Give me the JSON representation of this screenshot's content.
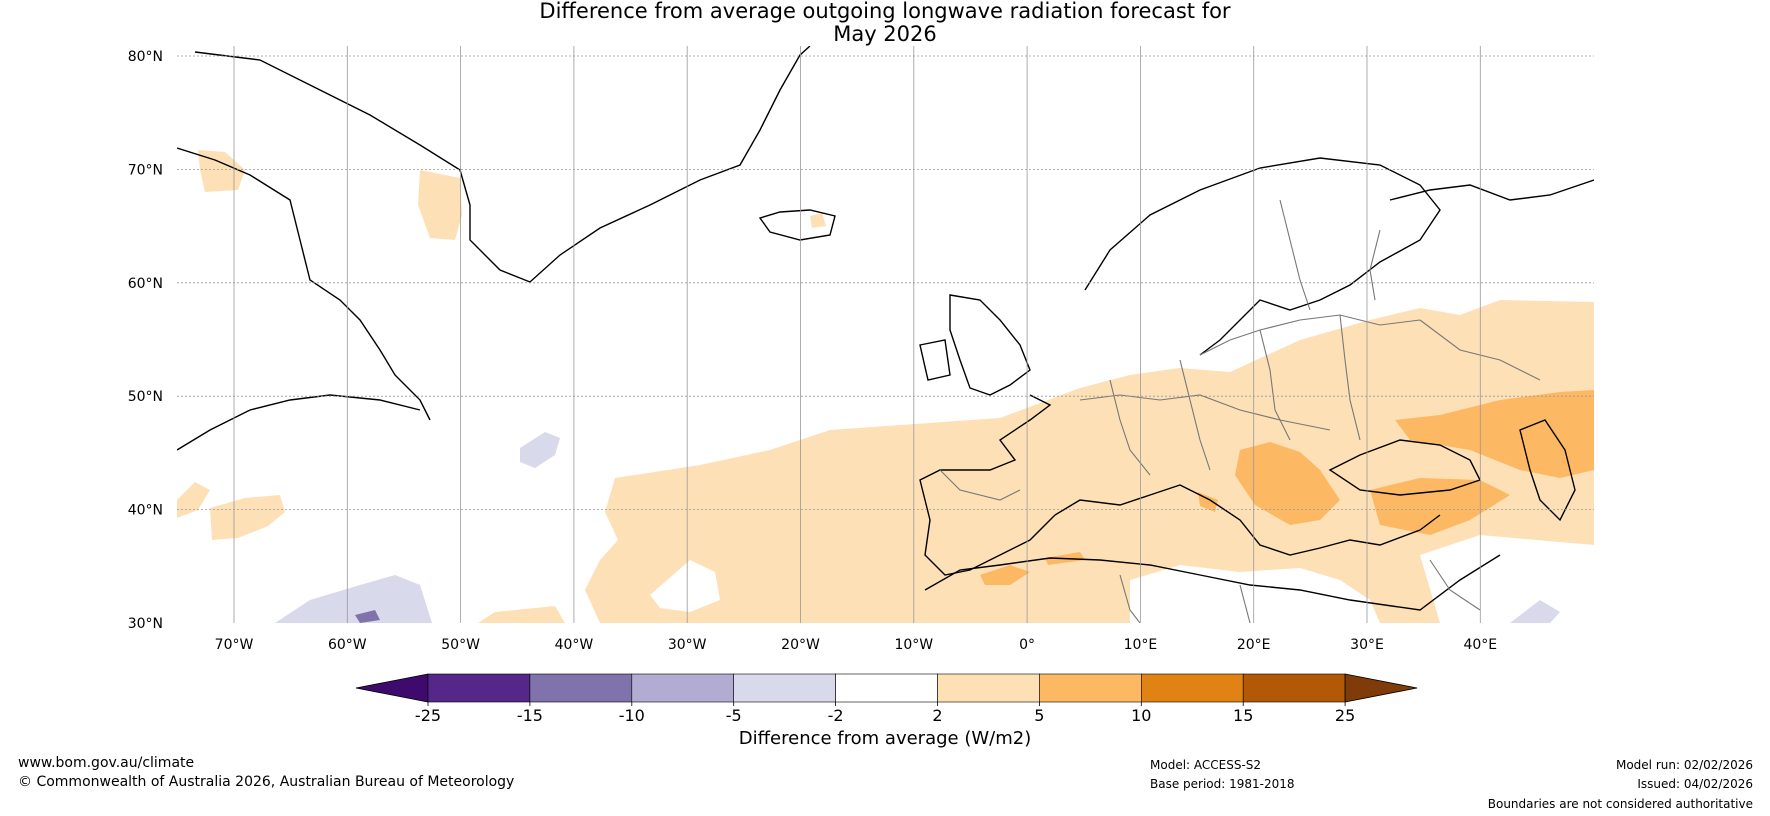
{
  "title": {
    "line1": "Difference from average outgoing longwave radiation forecast for",
    "line2": "May 2026"
  },
  "map": {
    "lat_labels": [
      "80°N",
      "70°N",
      "60°N",
      "50°N",
      "40°N",
      "30°N"
    ],
    "lon_labels": [
      "70°W",
      "60°W",
      "50°W",
      "40°W",
      "30°W",
      "20°W",
      "10°W",
      "0°",
      "10°E",
      "20°E",
      "30°E",
      "40°E"
    ]
  },
  "colorbar": {
    "label": "Difference from average (W/m2)",
    "ticks": [
      "-25",
      "-15",
      "-10",
      "-5",
      "-2",
      "2",
      "5",
      "10",
      "15",
      "25"
    ],
    "colors": [
      "#3f0a6e",
      "#542788",
      "#8073ac",
      "#b2abd2",
      "#d8daeb",
      "#ffffff",
      "#fee0b6",
      "#fdb863",
      "#e08214",
      "#b35806",
      "#7f3b08"
    ]
  },
  "footer": {
    "website": "www.bom.gov.au/climate",
    "copyright": "© Commonwealth of Australia 2026, Australian Bureau of Meteorology",
    "model": "Model: ACCESS-S2",
    "base_period": "Base period: 1981-2018",
    "model_run": "Model run: 02/02/2026",
    "issued": "Issued: 04/02/2026",
    "disclaimer": "Boundaries are not considered authoritative"
  }
}
